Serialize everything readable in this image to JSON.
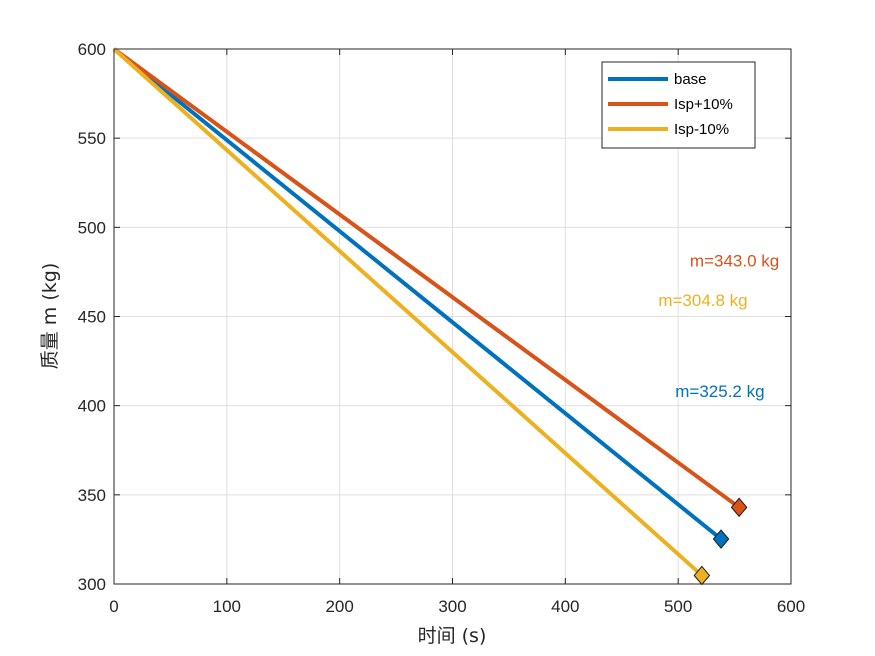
{
  "chart_data": {
    "type": "line",
    "xlabel": "时间 (s)",
    "ylabel": "质量 m (kg)",
    "xlim": [
      0,
      600
    ],
    "ylim": [
      300,
      600
    ],
    "xticks": [
      "0",
      "100",
      "200",
      "300",
      "400",
      "500",
      "600"
    ],
    "yticks": [
      "300",
      "350",
      "400",
      "450",
      "500",
      "550",
      "600"
    ],
    "grid": true,
    "legend_position": "top-right",
    "series": [
      {
        "name": "base",
        "color": "#0072BD",
        "x": [
          0,
          538
        ],
        "y": [
          600,
          325.2
        ],
        "end_marker": "diamond"
      },
      {
        "name": "Isp+10%",
        "color": "#D95319",
        "x": [
          0,
          554
        ],
        "y": [
          600,
          343.0
        ],
        "end_marker": "diamond"
      },
      {
        "name": "Isp-10%",
        "color": "#EDB120",
        "x": [
          0,
          521
        ],
        "y": [
          600,
          304.8
        ],
        "end_marker": "diamond"
      }
    ],
    "annotations": [
      {
        "text": "m=343.0 kg",
        "color": "#D95319",
        "x": 550,
        "y": 478
      },
      {
        "text": "m=304.8 kg",
        "color": "#EDB120",
        "x": 522,
        "y": 456
      },
      {
        "text": "m=325.2 kg",
        "color": "#0072BD",
        "x": 537,
        "y": 405
      }
    ]
  }
}
